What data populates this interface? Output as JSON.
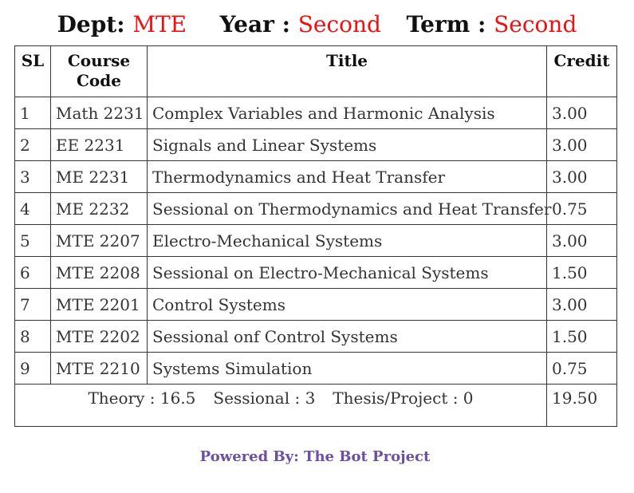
{
  "header": {
    "dept_label": "Dept:",
    "dept_value": "MTE",
    "year_label": "Year :",
    "year_value": "Second",
    "term_label": "Term :",
    "term_value": "Second"
  },
  "table": {
    "columns": [
      "SL",
      "Course Code",
      "Title",
      "Credit"
    ],
    "column_code_line1": "Course",
    "column_code_line2": "Code",
    "rows": [
      {
        "sl": "1",
        "code": "Math 2231",
        "title": "Complex Variables and Harmonic Analysis",
        "credit": "3.00"
      },
      {
        "sl": "2",
        "code": "EE 2231",
        "title": "Signals and Linear Systems",
        "credit": "3.00"
      },
      {
        "sl": "3",
        "code": "ME 2231",
        "title": "Thermodynamics and Heat Transfer",
        "credit": "3.00"
      },
      {
        "sl": "4",
        "code": "ME 2232",
        "title": "Sessional on Thermodynamics and Heat Transfer",
        "credit": "0.75"
      },
      {
        "sl": "5",
        "code": "MTE 2207",
        "title": "Electro-Mechanical Systems",
        "credit": "3.00"
      },
      {
        "sl": "6",
        "code": "MTE 2208",
        "title": "Sessional on Electro-Mechanical Systems",
        "credit": "1.50"
      },
      {
        "sl": "7",
        "code": "MTE 2201",
        "title": "Control Systems",
        "credit": "3.00"
      },
      {
        "sl": "8",
        "code": "MTE 2202",
        "title": "Sessional onf Control Systems",
        "credit": "1.50"
      },
      {
        "sl": "9",
        "code": "MTE 2210",
        "title": "Systems Simulation",
        "credit": "0.75"
      }
    ],
    "summary": {
      "theory": "Theory : 16.5",
      "sessional": "Sessional : 3",
      "thesis": "Thesis/Project : 0",
      "total": "19.50"
    }
  },
  "footer": {
    "powered_by": "Powered By: The Bot Project"
  },
  "colors": {
    "value_red": "#ee1111",
    "footer_purple": "#6a4fa3"
  }
}
